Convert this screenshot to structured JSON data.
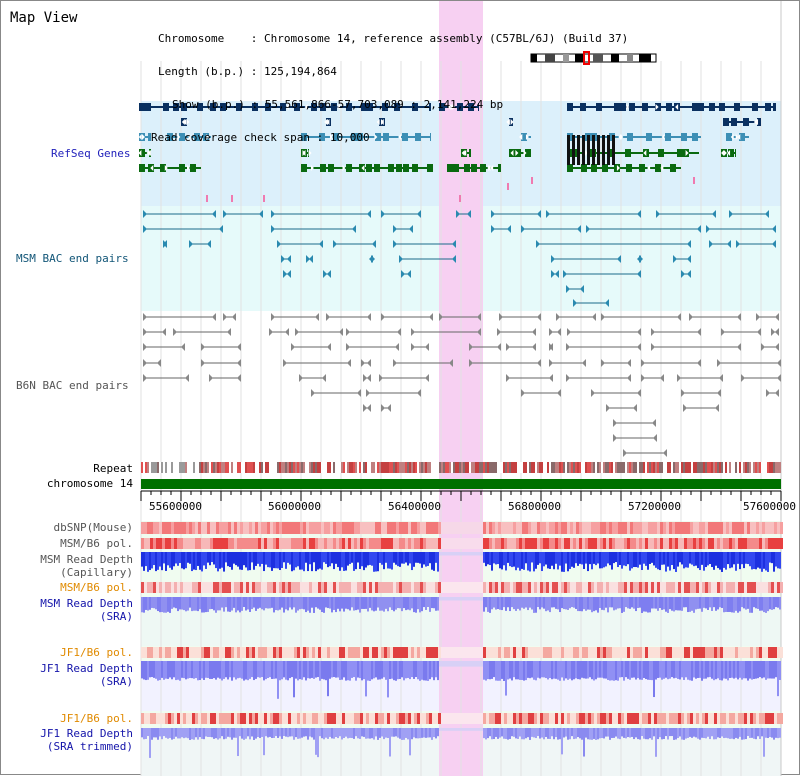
{
  "title": "Map View",
  "info": {
    "chromosome_label": "Chromosome",
    "chromosome_value": "Chromosome 14, reference assembly (C57BL/6J) (Build 37)",
    "length_label": "Length (b.p.)",
    "length_value": "125,194,864",
    "show_label": "Show (b.p.)",
    "show_value": "55,561,866-57,703,089 : 2,141,224 bp",
    "span_label": "Read coverage check span",
    "span_value": "10,000"
  },
  "tracks": {
    "refseq": "RefSeq Genes",
    "msm_bac": "MSM BAC end pairs",
    "b6n_bac": "B6N BAC end pairs",
    "repeat": "Repeat",
    "chromosome": "chromosome 14",
    "dbsnp": "dbSNP(Mouse)",
    "msm_b6_pol_1": "MSM/B6 pol.",
    "msm_depth_cap_1": "MSM Read Depth",
    "msm_depth_cap_2": "(Capillary)",
    "msm_b6_pol_2": "MSM/B6 pol.",
    "msm_depth_sra_1": "MSM Read Depth",
    "msm_depth_sra_2": "(SRA)",
    "jf1_b6_pol_1": "JF1/B6 pol.",
    "jf1_depth_sra_1": "JF1 Read Depth",
    "jf1_depth_sra_2": "(SRA)",
    "jf1_b6_pol_2": "JF1/B6 pol.",
    "jf1_depth_trim_1": "JF1 Read Depth",
    "jf1_depth_trim_2": "(SRA trimmed)"
  },
  "axis": {
    "ticks": [
      "55600000",
      "56000000",
      "56400000",
      "56800000",
      "57200000",
      "57600000"
    ]
  },
  "colors": {
    "refseq_label": "#2222bb",
    "msm_bac_label": "#115577",
    "b6n_bac_label": "#555555",
    "pol_label": "#e08a00",
    "depth_label": "#1515aa",
    "highlight": "#f7d0f2",
    "chromosome_bar": "#007000"
  }
}
